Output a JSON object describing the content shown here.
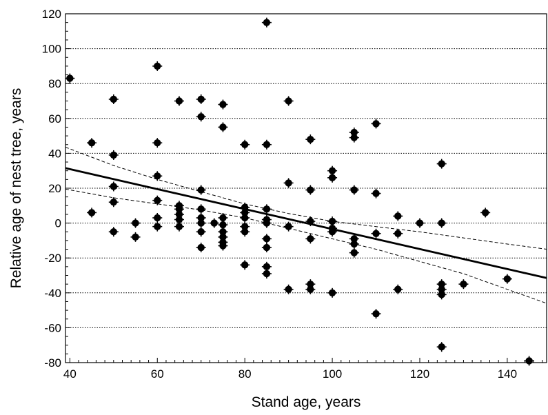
{
  "chart_data": {
    "type": "scatter",
    "title": "",
    "xlabel": "Stand age, years",
    "ylabel": "Relative age of nest tree, years",
    "xlim": [
      39,
      149
    ],
    "ylim": [
      -80,
      120
    ],
    "xticks": [
      40,
      60,
      80,
      100,
      120,
      140
    ],
    "yticks": [
      -80,
      -60,
      -40,
      -20,
      0,
      20,
      40,
      60,
      80,
      100,
      120
    ],
    "grid": "horizontal dotted",
    "legend": "none",
    "colors": {
      "points": "#000000",
      "line": "#000000",
      "grid": "#000000"
    },
    "points": [
      [
        40,
        83
      ],
      [
        45,
        46
      ],
      [
        45,
        6
      ],
      [
        50,
        71
      ],
      [
        50,
        39
      ],
      [
        50,
        21
      ],
      [
        50,
        12
      ],
      [
        50,
        -5
      ],
      [
        55,
        0
      ],
      [
        55,
        -8
      ],
      [
        60,
        90
      ],
      [
        60,
        46
      ],
      [
        60,
        27
      ],
      [
        60,
        13
      ],
      [
        60,
        3
      ],
      [
        60,
        -2
      ],
      [
        65,
        70
      ],
      [
        65,
        10
      ],
      [
        65,
        8
      ],
      [
        65,
        5
      ],
      [
        65,
        2
      ],
      [
        65,
        -2
      ],
      [
        70,
        71
      ],
      [
        70,
        61
      ],
      [
        70,
        19
      ],
      [
        70,
        8
      ],
      [
        70,
        3
      ],
      [
        70,
        0
      ],
      [
        70,
        -5
      ],
      [
        70,
        -14
      ],
      [
        73,
        0
      ],
      [
        75,
        68
      ],
      [
        75,
        55
      ],
      [
        75,
        3
      ],
      [
        75,
        -1
      ],
      [
        75,
        -5
      ],
      [
        75,
        -8
      ],
      [
        75,
        -11
      ],
      [
        75,
        -13
      ],
      [
        80,
        45
      ],
      [
        80,
        9
      ],
      [
        80,
        6
      ],
      [
        80,
        3
      ],
      [
        80,
        -2
      ],
      [
        80,
        -5
      ],
      [
        80,
        -24
      ],
      [
        85,
        115
      ],
      [
        85,
        45
      ],
      [
        85,
        8
      ],
      [
        85,
        2
      ],
      [
        85,
        0
      ],
      [
        85,
        -9
      ],
      [
        85,
        -14
      ],
      [
        85,
        -25
      ],
      [
        85,
        -29
      ],
      [
        90,
        70
      ],
      [
        90,
        23
      ],
      [
        90,
        -2
      ],
      [
        90,
        -38
      ],
      [
        95,
        48
      ],
      [
        95,
        19
      ],
      [
        95,
        1
      ],
      [
        95,
        -9
      ],
      [
        95,
        -35
      ],
      [
        95,
        -38
      ],
      [
        100,
        30
      ],
      [
        100,
        26
      ],
      [
        100,
        1
      ],
      [
        100,
        -3
      ],
      [
        100,
        -5
      ],
      [
        100,
        -40
      ],
      [
        105,
        52
      ],
      [
        105,
        49
      ],
      [
        105,
        19
      ],
      [
        105,
        -9
      ],
      [
        105,
        -12
      ],
      [
        105,
        -17
      ],
      [
        110,
        57
      ],
      [
        110,
        17
      ],
      [
        110,
        -6
      ],
      [
        110,
        -52
      ],
      [
        115,
        4
      ],
      [
        115,
        -6
      ],
      [
        115,
        -38
      ],
      [
        120,
        0
      ],
      [
        125,
        34
      ],
      [
        125,
        0
      ],
      [
        125,
        -35
      ],
      [
        125,
        -38
      ],
      [
        125,
        -41
      ],
      [
        125,
        -71
      ],
      [
        130,
        -35
      ],
      [
        135,
        6
      ],
      [
        140,
        -32
      ],
      [
        145,
        -79
      ]
    ],
    "regression_line": {
      "x": [
        39,
        149
      ],
      "y": [
        31.5,
        -31.5
      ]
    },
    "confidence_band_upper": {
      "x": [
        39,
        50,
        60,
        70,
        80,
        90,
        100,
        110,
        120,
        130,
        140,
        149
      ],
      "y": [
        43.5,
        33,
        25,
        18,
        11,
        5.5,
        1,
        -2,
        -5,
        -8.5,
        -12,
        -15
      ]
    },
    "confidence_band_lower": {
      "x": [
        39,
        50,
        60,
        70,
        80,
        90,
        100,
        110,
        120,
        130,
        140,
        149
      ],
      "y": [
        19.5,
        14.5,
        11,
        7.5,
        3,
        -3,
        -9,
        -15,
        -22,
        -29,
        -38,
        -46
      ]
    }
  }
}
